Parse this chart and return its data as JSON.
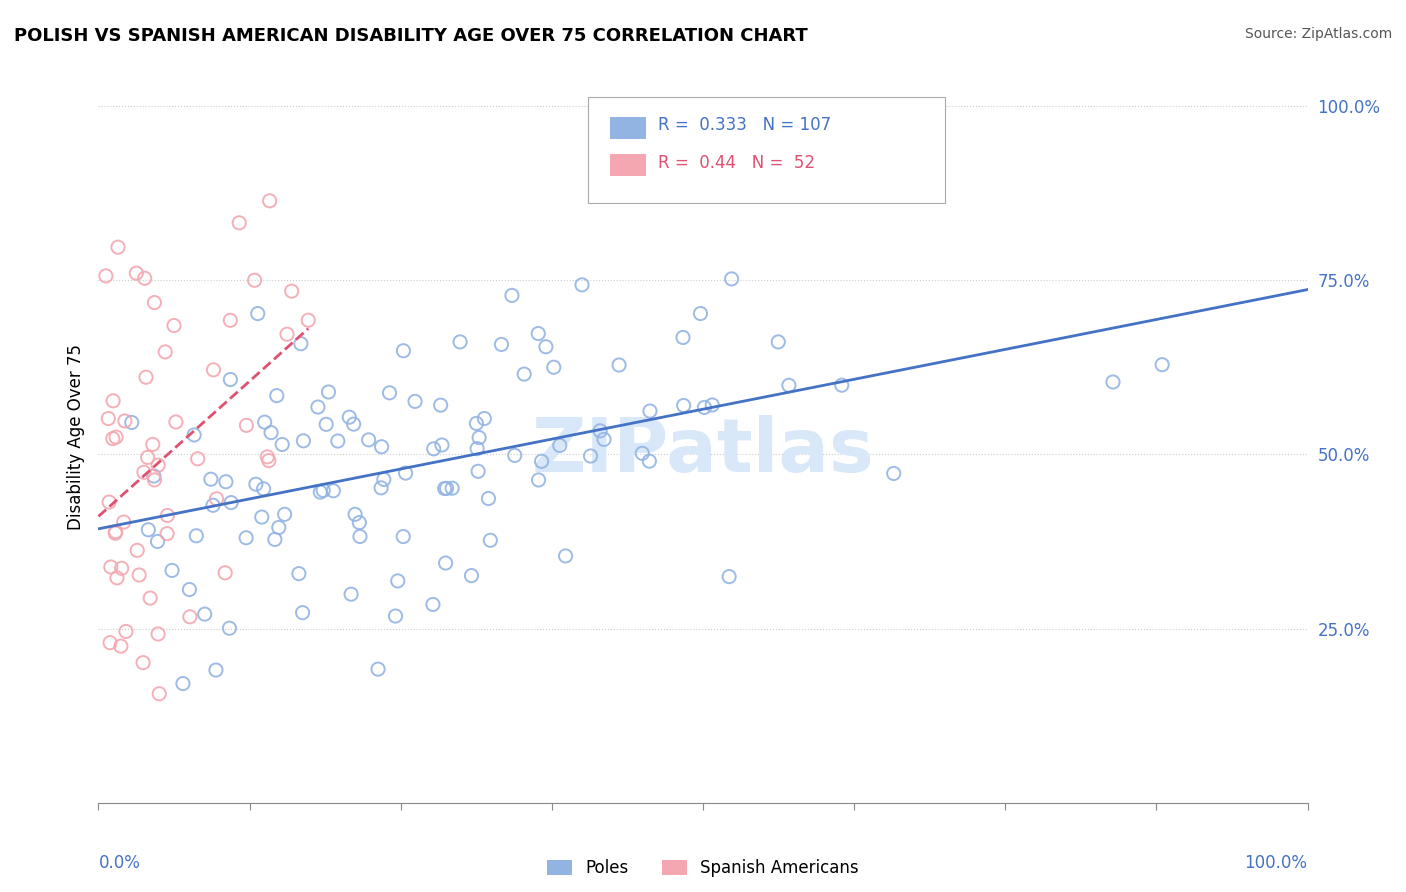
{
  "title": "POLISH VS SPANISH AMERICAN DISABILITY AGE OVER 75 CORRELATION CHART",
  "source": "Source: ZipAtlas.com",
  "ylabel": "Disability Age Over 75",
  "ylabel_right_ticks": [
    "25.0%",
    "50.0%",
    "75.0%",
    "100.0%"
  ],
  "ylabel_right_vals": [
    0.25,
    0.5,
    0.75,
    1.0
  ],
  "legend_labels": [
    "Poles",
    "Spanish Americans"
  ],
  "legend_R": [
    0.333,
    0.44
  ],
  "legend_N": [
    107,
    52
  ],
  "blue_color": "#92b4e3",
  "pink_color": "#f4a7b0",
  "blue_line_color": "#4472c4",
  "pink_line_color": "#e05070",
  "watermark": "ZIPatlas",
  "watermark_color": "#d8e8f8",
  "xlim": [
    0.0,
    1.0
  ],
  "ylim": [
    0.0,
    1.05
  ],
  "background_color": "#ffffff",
  "grid_color": "#cccccc",
  "title_fontsize": 13,
  "source_fontsize": 10
}
